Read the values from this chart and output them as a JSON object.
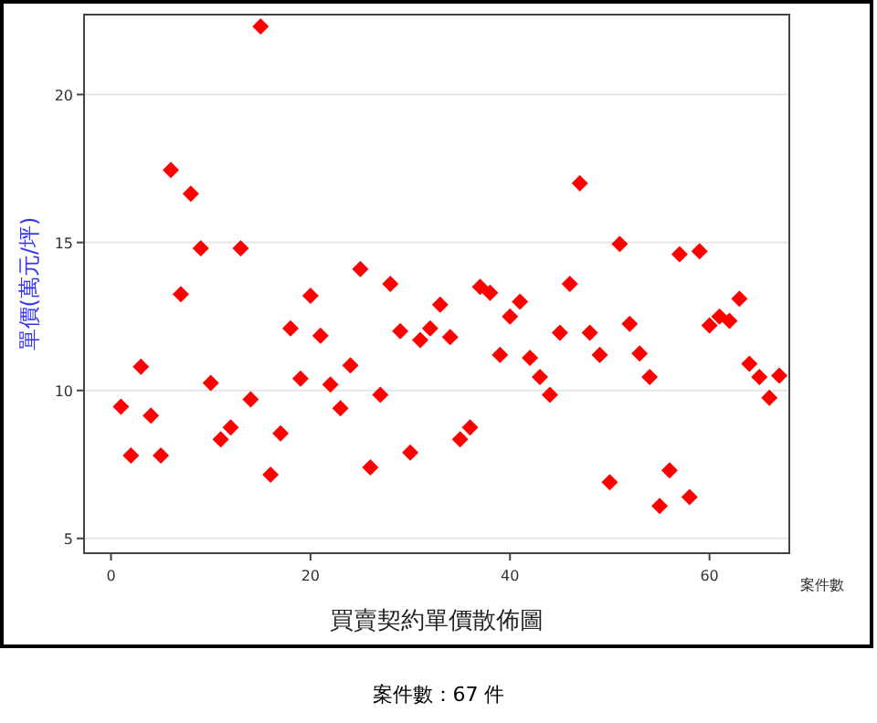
{
  "chart_data": {
    "type": "scatter",
    "title": "買賣契約單價散佈圖",
    "xlabel": "案件數",
    "ylabel": "單價(萬元/坪)",
    "annotations": [
      "案件數：67 件"
    ],
    "x": [
      1,
      2,
      3,
      4,
      5,
      6,
      7,
      8,
      9,
      10,
      11,
      12,
      13,
      14,
      15,
      16,
      17,
      18,
      19,
      20,
      21,
      22,
      23,
      24,
      25,
      26,
      27,
      28,
      29,
      30,
      31,
      32,
      33,
      34,
      35,
      36,
      37,
      38,
      39,
      40,
      41,
      42,
      43,
      44,
      45,
      46,
      47,
      48,
      49,
      50,
      51,
      52,
      53,
      54,
      55,
      56,
      57,
      58,
      59,
      60,
      61,
      62,
      63,
      64,
      65,
      66,
      67
    ],
    "values": [
      9.45,
      7.8,
      10.8,
      9.15,
      7.8,
      17.45,
      13.25,
      16.65,
      14.8,
      10.25,
      8.35,
      8.75,
      14.8,
      9.7,
      22.3,
      7.15,
      8.55,
      12.1,
      10.4,
      13.2,
      11.85,
      10.2,
      9.4,
      10.85,
      14.1,
      7.4,
      9.85,
      13.6,
      12.0,
      7.9,
      11.7,
      12.1,
      12.9,
      11.8,
      8.35,
      8.75,
      13.5,
      13.3,
      11.2,
      12.5,
      13.0,
      11.1,
      10.45,
      9.85,
      11.95,
      13.6,
      17.0,
      11.95,
      11.2,
      6.9,
      14.95,
      12.25,
      11.25,
      10.45,
      6.1,
      7.3,
      14.6,
      6.4,
      14.7,
      12.2,
      12.5,
      12.35,
      13.1,
      10.9,
      10.45,
      9.75,
      10.5
    ],
    "color": "#ff0000",
    "marker": "diamond",
    "grid": "y",
    "xlim": [
      -2.7,
      68
    ],
    "ylim": [
      4.5,
      22.7
    ],
    "xticks": [
      0,
      20,
      40,
      60
    ],
    "yticks": [
      5,
      10,
      15,
      20
    ]
  }
}
